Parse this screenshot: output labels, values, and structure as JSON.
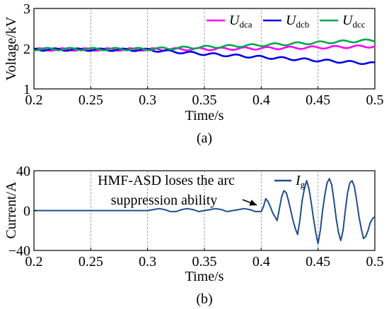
{
  "chart_data": [
    {
      "type": "line",
      "ylabel": "Voltage/kV",
      "xlabel": "Time/s",
      "caption": "(a)",
      "xlim": [
        0.2,
        0.5
      ],
      "ylim": [
        1,
        3
      ],
      "x_ticks": [
        "0.2",
        "0.25",
        "0.3",
        "0.35",
        "0.4",
        "0.45",
        "0.5"
      ],
      "y_ticks": [
        "1",
        "2",
        "3"
      ],
      "grid": "vertical dashed",
      "legend_position": "top-right",
      "series": [
        {
          "name": "U",
          "subscript": "dca",
          "color": "#ff00ff",
          "x": [
            0.2,
            0.3,
            0.35,
            0.4,
            0.45,
            0.5
          ],
          "values": [
            1.98,
            1.98,
            1.99,
            2.01,
            2.03,
            2.06
          ],
          "ripple": 0.03
        },
        {
          "name": "U",
          "subscript": "dcb",
          "color": "#0000e6",
          "x": [
            0.2,
            0.3,
            0.35,
            0.4,
            0.45,
            0.5
          ],
          "values": [
            1.98,
            1.97,
            1.87,
            1.79,
            1.71,
            1.63
          ],
          "ripple": 0.03
        },
        {
          "name": "U",
          "subscript": "dcc",
          "color": "#00a651",
          "x": [
            0.2,
            0.3,
            0.35,
            0.4,
            0.45,
            0.5
          ],
          "values": [
            1.99,
            1.99,
            2.04,
            2.09,
            2.15,
            2.21
          ],
          "ripple": 0.03
        }
      ]
    },
    {
      "type": "line",
      "ylabel": "Current/A",
      "xlabel": "Time/s",
      "caption": "(b)",
      "xlim": [
        0.2,
        0.5
      ],
      "ylim": [
        -40,
        40
      ],
      "x_ticks": [
        "0.2",
        "0.25",
        "0.3",
        "0.35",
        "0.4",
        "0.45",
        "0.5"
      ],
      "y_ticks": [
        "40",
        "0",
        "−40"
      ],
      "grid": "vertical dashed",
      "legend_position": "top-right",
      "annotation": {
        "line1": "HMF-ASD loses the arc",
        "line2": "suppression ability",
        "x": 0.4
      },
      "series": [
        {
          "name": "I",
          "subscript": "g",
          "color": "#1f4e8c",
          "x": [
            0.2,
            0.3,
            0.305,
            0.31,
            0.315,
            0.32,
            0.325,
            0.33,
            0.335,
            0.34,
            0.345,
            0.35,
            0.355,
            0.36,
            0.365,
            0.37,
            0.375,
            0.38,
            0.385,
            0.39,
            0.395,
            0.4,
            0.402,
            0.404,
            0.406,
            0.408,
            0.41,
            0.412,
            0.414,
            0.416,
            0.418,
            0.42,
            0.422,
            0.424,
            0.426,
            0.428,
            0.43,
            0.432,
            0.434,
            0.436,
            0.438,
            0.44,
            0.442,
            0.444,
            0.446,
            0.448,
            0.45,
            0.452,
            0.454,
            0.456,
            0.458,
            0.46,
            0.462,
            0.464,
            0.466,
            0.468,
            0.47,
            0.472,
            0.474,
            0.476,
            0.478,
            0.48,
            0.482,
            0.484,
            0.486,
            0.488,
            0.49,
            0.492,
            0.494,
            0.496,
            0.498,
            0.5
          ],
          "values": [
            0,
            0,
            1,
            2,
            1,
            -1,
            -1,
            1,
            2,
            1,
            -1,
            0,
            1,
            2,
            1,
            -1,
            0,
            1,
            2,
            1,
            -1,
            -1,
            4,
            12,
            9,
            4,
            -2,
            -6,
            -10,
            2,
            14,
            20,
            18,
            10,
            0,
            -10,
            -18,
            -24,
            -10,
            10,
            22,
            30,
            22,
            8,
            -8,
            -22,
            -33,
            -20,
            0,
            16,
            28,
            32,
            26,
            10,
            -8,
            -22,
            -30,
            -20,
            0,
            18,
            28,
            30,
            24,
            10,
            -6,
            -18,
            -28,
            -26,
            -20,
            -12,
            -8,
            -6
          ]
        }
      ]
    }
  ]
}
